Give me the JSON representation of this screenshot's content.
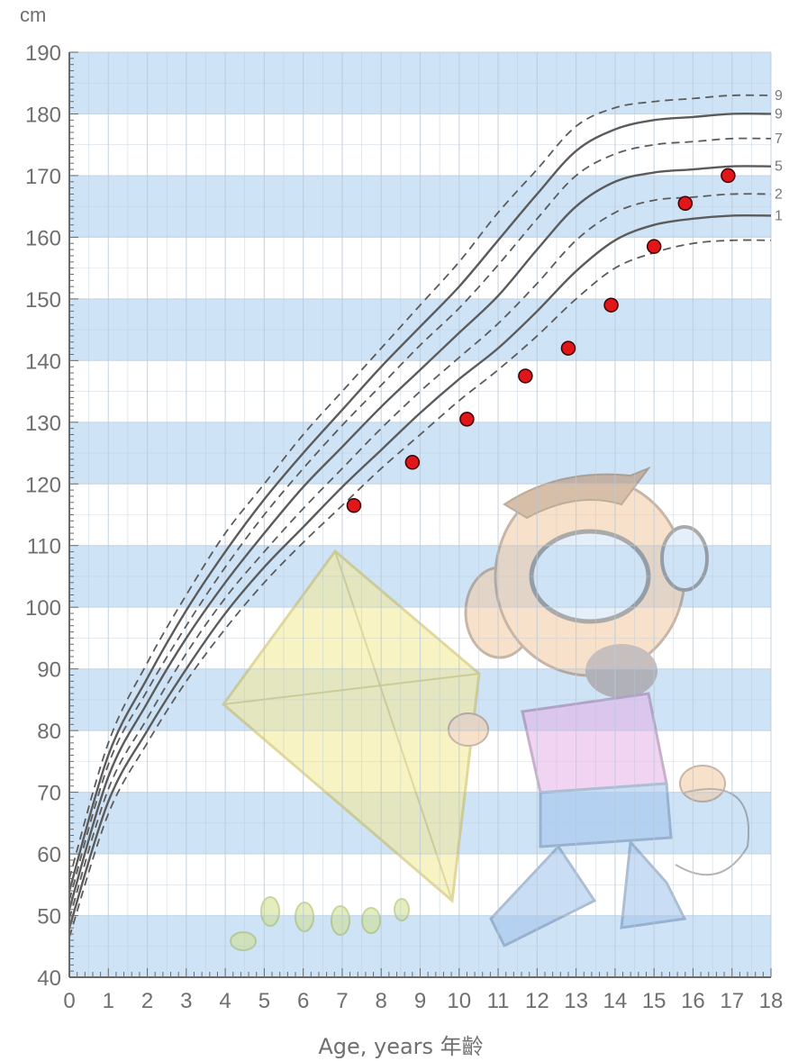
{
  "chart_data": {
    "type": "line",
    "ylabel": "cm",
    "xlabel": "Age, years 年齡",
    "xlim": [
      0,
      18
    ],
    "ylim": [
      40,
      190
    ],
    "x_ticks": [
      "0",
      "1",
      "2",
      "3",
      "4",
      "5",
      "6",
      "7",
      "8",
      "9",
      "10",
      "11",
      "12",
      "13",
      "14",
      "15",
      "16",
      "17",
      "18"
    ],
    "y_ticks": [
      "40",
      "50",
      "60",
      "70",
      "80",
      "90",
      "100",
      "110",
      "120",
      "130",
      "140",
      "150",
      "160",
      "170",
      "180",
      "190"
    ],
    "band_color": "#cfe3f6",
    "grid_color": "#b9c9d8",
    "curve_color": "#5b5b5b",
    "point_color": "#e0161b",
    "percentile_curves": [
      {
        "label": "9",
        "style": "dashed",
        "x": [
          0,
          1,
          2,
          3,
          4,
          5,
          6,
          7,
          8,
          9,
          10,
          11,
          12,
          13,
          14,
          15,
          16,
          17,
          18
        ],
        "y": [
          56,
          78,
          91,
          102,
          112,
          120,
          128,
          135,
          142,
          149,
          156,
          164,
          171,
          178,
          181,
          182,
          182.5,
          183,
          183
        ]
      },
      {
        "label": "9",
        "style": "solid",
        "x": [
          0,
          1,
          2,
          3,
          4,
          5,
          6,
          7,
          8,
          9,
          10,
          11,
          12,
          13,
          14,
          15,
          16,
          17,
          18
        ],
        "y": [
          54,
          76,
          88.5,
          99.5,
          109,
          117.5,
          125,
          132,
          139,
          145.5,
          152,
          159.5,
          167,
          174,
          177.5,
          179,
          179.5,
          180,
          180
        ]
      },
      {
        "label": "7",
        "style": "dashed",
        "x": [
          0,
          1,
          2,
          3,
          4,
          5,
          6,
          7,
          8,
          9,
          10,
          11,
          12,
          13,
          14,
          15,
          16,
          17,
          18
        ],
        "y": [
          52.5,
          74.5,
          86.5,
          97,
          106.5,
          115,
          122.5,
          129.5,
          136,
          142.5,
          148.5,
          155.5,
          163,
          170,
          173.5,
          175,
          175.5,
          176,
          176
        ]
      },
      {
        "label": "5",
        "style": "solid",
        "x": [
          0,
          1,
          2,
          3,
          4,
          5,
          6,
          7,
          8,
          9,
          10,
          11,
          12,
          13,
          14,
          15,
          16,
          17,
          18
        ],
        "y": [
          51,
          72.5,
          84.5,
          95,
          104,
          112,
          119.5,
          126,
          132.5,
          138.5,
          144.5,
          150.5,
          158,
          165,
          169,
          170.5,
          171,
          171.5,
          171.5
        ]
      },
      {
        "label": "2",
        "style": "dashed",
        "x": [
          0,
          1,
          2,
          3,
          4,
          5,
          6,
          7,
          8,
          9,
          10,
          11,
          12,
          13,
          14,
          15,
          16,
          17,
          18
        ],
        "y": [
          49.5,
          70.5,
          82,
          92.5,
          101.5,
          109,
          116,
          122.5,
          129,
          135,
          140.5,
          146,
          152.5,
          159.5,
          164,
          166,
          166.5,
          167,
          167
        ]
      },
      {
        "label": "1",
        "style": "solid",
        "x": [
          0,
          1,
          2,
          3,
          4,
          5,
          6,
          7,
          8,
          9,
          10,
          11,
          12,
          13,
          14,
          15,
          16,
          17,
          18
        ],
        "y": [
          48,
          68.5,
          80,
          90,
          99,
          106.5,
          113,
          119.5,
          125.5,
          131.5,
          137,
          142,
          148,
          154.5,
          159.5,
          162,
          163,
          163.5,
          163.5
        ]
      },
      {
        "label": "",
        "style": "dashed",
        "x": [
          0,
          1,
          2,
          3,
          4,
          5,
          6,
          7,
          8,
          9,
          10,
          11,
          12,
          13,
          14,
          15,
          16,
          17,
          18
        ],
        "y": [
          46.5,
          66.5,
          78,
          88,
          96.5,
          104,
          110.5,
          116.5,
          122.5,
          128,
          133.5,
          138.5,
          144,
          150,
          155,
          157.5,
          159,
          159.5,
          159.5
        ]
      }
    ],
    "measurements": {
      "x": [
        7.3,
        8.8,
        10.2,
        11.7,
        12.8,
        13.9,
        15.0,
        15.8,
        16.9
      ],
      "y": [
        116.5,
        123.5,
        130.5,
        137.5,
        142.0,
        149.0,
        158.5,
        165.5,
        170.0
      ]
    }
  }
}
